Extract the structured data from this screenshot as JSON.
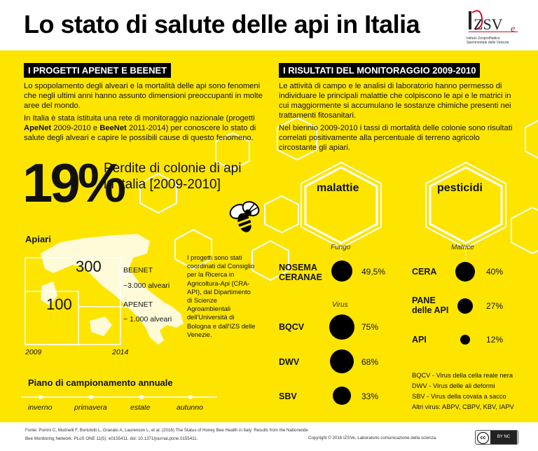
{
  "title": "Lo stato di salute delle api in Italia",
  "logo": {
    "text": "IZSVe",
    "subtitle_line1": "Istituto Zooprofilattico",
    "subtitle_line2": "Sperimentale delle Venezie"
  },
  "left": {
    "heading": "I PROGETTI APENET E BEENET",
    "p1": "Lo spopolamento degli alveari e la mortalità delle api sono fenomeni che negli ultimi anni hanno assunto dimensioni preoccupanti in molte aree del mondo.",
    "p2_a": "In Italia è stata istituita una rete di monitoraggio nazionale (progetti ",
    "p2_apenet": "ApeNet",
    "p2_b": " 2009-2010 e ",
    "p2_beenet": "BeeNet",
    "p2_c": " 2011-2014) per conoscere lo stato di salute degli alveari e capire le possibili cause di questo fenomeno.",
    "big_value": "19%",
    "big_caption_line1": "Perdite di colonie di api",
    "big_caption_line2": "in Italia [2009-2010]",
    "apiari": {
      "label": "Apiari",
      "beenet_count": "300",
      "beenet_label": "BEENET",
      "beenet_hives": "~3.000 alveari",
      "apenet_count": "100",
      "apenet_label": "APENET",
      "apenet_hives": "~ 1.000 alveari",
      "year_start": "2009",
      "year_end": "2014"
    },
    "note": "I progetti sono stati coordinati dal Consiglio per la Ricerca in Agricoltura-Api (CRA-API), dal Dipartimento di Scienze Agroambientali dell'Università di Bologna e dall'IZS delle Venezie.",
    "piano": {
      "label": "Piano di campionamento annuale",
      "seasons": [
        "inverno",
        "primavera",
        "estate",
        "autunno"
      ]
    }
  },
  "right": {
    "heading": "I RISULTATI DEL MONITORAGGIO 2009-2010",
    "p1": "Le attività di campo e le analisi di laboratorio hanno permesso di individuare le principali malattie che colpiscono le api e le matrici in cui maggiormente si accumulano le sostanze chimiche presenti nei trattamenti fitosanitari.",
    "p2": "Nel biennio 2009-2010 i tassi di mortalità delle colonie sono risultati correlati positivamente alla percentuale di terreno agricolo circostante gli apiari.",
    "malattie": {
      "label": "malattie",
      "group1_label": "Fungo",
      "group2_label": "Virus",
      "rows": [
        {
          "name": "NOSEMA\nCERANAE",
          "value": "49,5%",
          "pct": 49.5
        },
        {
          "name": "BQCV",
          "value": "75%",
          "pct": 75
        },
        {
          "name": "DWV",
          "value": "68%",
          "pct": 68
        },
        {
          "name": "SBV",
          "value": "33%",
          "pct": 33
        }
      ]
    },
    "pesticidi": {
      "label": "pesticidi",
      "group_label": "Matrice",
      "rows": [
        {
          "name": "CERA",
          "value": "40%",
          "pct": 40
        },
        {
          "name": "PANE\ndelle API",
          "value": "27%",
          "pct": 27
        },
        {
          "name": "API",
          "value": "12%",
          "pct": 12
        }
      ]
    },
    "legend": [
      "BQCV - Virus della cella reale nera",
      "DWV - Virus delle ali deformi",
      "SBV - Virus della covata a sacco",
      "Altri virus: ABPV, CBPV, KBV, IAPV"
    ]
  },
  "footer": {
    "source_line1": "Fonte: Porrini C, Mutinelli F, Bortolotti L, Granato A, Laurenson L, et al. (2016) The Status of Honey Bee Health in Italy: Results from the Nationwide",
    "source_line2": "Bee Monitoring Network. PLoS ONE 11(5): e0155411. doi: 10.1371/journal.pone.0155411.",
    "copyright": "Copyright © 2016 IZSVe, Laboratorio comunicazione della scienza.",
    "cc_label": "cc",
    "cc_terms": "BY   NC"
  },
  "colors": {
    "background": "#fde500",
    "text": "#111111",
    "heading_bg": "#000000",
    "logo_red": "#c8102e"
  }
}
